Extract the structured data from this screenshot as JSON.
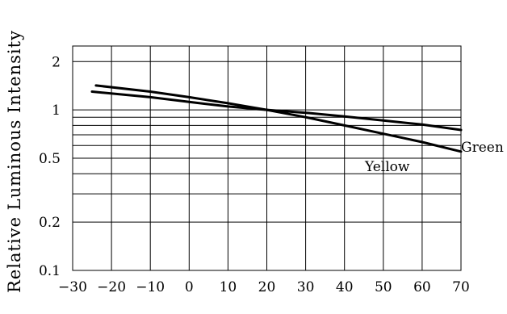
{
  "chart_data": {
    "type": "line",
    "ylabel": "Relative Luminous Intensity",
    "xlabel": "",
    "xlim": [
      -30,
      70
    ],
    "ylim": [
      0.1,
      2.5
    ],
    "y_scale": "log",
    "x_ticks": [
      -30,
      -20,
      -10,
      0,
      10,
      20,
      30,
      40,
      50,
      60,
      70
    ],
    "y_tick_labels": [
      {
        "value": 0.1,
        "label": "0.1"
      },
      {
        "value": 0.2,
        "label": "0.2"
      },
      {
        "value": 0.5,
        "label": "0.5"
      },
      {
        "value": 1,
        "label": "1"
      },
      {
        "value": 2,
        "label": "2"
      }
    ],
    "y_gridlines": [
      0.1,
      0.2,
      0.3,
      0.4,
      0.5,
      0.6,
      0.7,
      0.8,
      0.9,
      1,
      2,
      2.5
    ],
    "grid": true,
    "series": [
      {
        "name": "Green",
        "x": [
          -25,
          -10,
          0,
          10,
          20,
          30,
          40,
          50,
          60,
          70
        ],
        "y": [
          1.3,
          1.2,
          1.12,
          1.05,
          1.0,
          0.96,
          0.91,
          0.86,
          0.81,
          0.75
        ]
      },
      {
        "name": "Yellow",
        "x": [
          -24,
          -10,
          0,
          10,
          20,
          30,
          40,
          50,
          60,
          70
        ],
        "y": [
          1.42,
          1.3,
          1.2,
          1.1,
          1.0,
          0.9,
          0.8,
          0.71,
          0.63,
          0.55
        ]
      }
    ]
  }
}
